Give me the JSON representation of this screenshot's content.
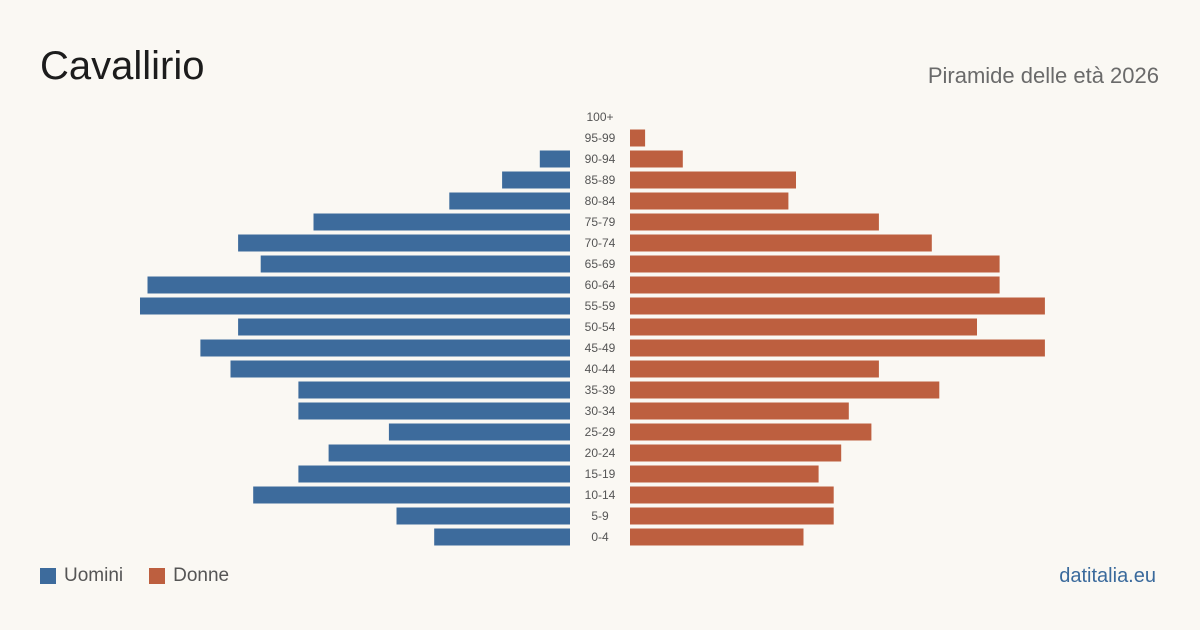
{
  "header": {
    "title": "Cavallirio",
    "subtitle": "Piramide delle età 2026"
  },
  "legend": {
    "men_label": "Uomini",
    "women_label": "Donne"
  },
  "footer": {
    "credit": "datitalia.eu"
  },
  "colors": {
    "men": "#3d6b9c",
    "women": "#bd5f3f",
    "background": "#faf8f3",
    "tick_text": "#555555"
  },
  "chart_data": {
    "type": "bar",
    "orientation": "horizontal",
    "layout": "population-pyramid",
    "categories": [
      "100+",
      "95-99",
      "90-94",
      "85-89",
      "80-84",
      "75-79",
      "70-74",
      "65-69",
      "60-64",
      "55-59",
      "50-54",
      "45-49",
      "40-44",
      "35-39",
      "30-34",
      "25-29",
      "20-24",
      "15-19",
      "10-14",
      "5-9",
      "0-4"
    ],
    "series": [
      {
        "name": "Uomini",
        "side": "left",
        "values": [
          0,
          0,
          4,
          9,
          16,
          34,
          44,
          41,
          56,
          57,
          44,
          49,
          45,
          36,
          36,
          24,
          32,
          36,
          42,
          23,
          18
        ]
      },
      {
        "name": "Donne",
        "side": "right",
        "values": [
          0,
          2,
          7,
          22,
          21,
          33,
          40,
          49,
          49,
          55,
          46,
          55,
          33,
          41,
          29,
          32,
          28,
          25,
          27,
          27,
          23
        ]
      }
    ],
    "xlim": [
      0,
      57
    ],
    "grid": false,
    "legend_position": "bottom-left"
  }
}
